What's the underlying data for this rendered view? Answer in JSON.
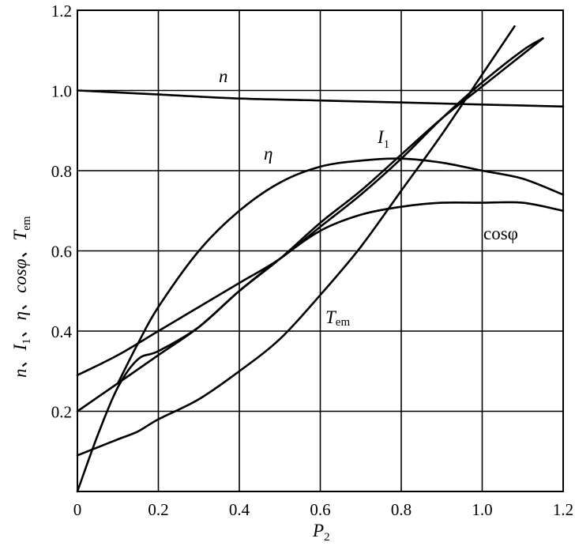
{
  "chart_data": {
    "type": "line",
    "xlabel": {
      "main": "P",
      "sub": "2"
    },
    "ylabel": {
      "main": "n、I",
      "sub1": "1",
      "mid": "、η、cosφ、T",
      "sub2": "em"
    },
    "xlim": [
      0,
      1.2
    ],
    "ylim": [
      0,
      1.2
    ],
    "grid": true,
    "x_ticks": [
      "0",
      "0.2",
      "0.4",
      "0.6",
      "0.8",
      "1.0",
      "1.2"
    ],
    "y_ticks": [
      "0.2",
      "0.4",
      "0.6",
      "0.8",
      "1.0",
      "1.2"
    ],
    "series": [
      {
        "name": "n",
        "x": [
          0,
          0.2,
          0.4,
          0.6,
          0.8,
          1.0,
          1.2
        ],
        "y": [
          1.0,
          0.99,
          0.98,
          0.975,
          0.97,
          0.965,
          0.96
        ]
      },
      {
        "name": "η",
        "x": [
          0.1,
          0.15,
          0.2,
          0.3,
          0.4,
          0.5,
          0.6,
          0.7,
          0.8,
          0.9,
          1.0,
          1.1,
          1.2
        ],
        "y": [
          0.27,
          0.37,
          0.46,
          0.6,
          0.7,
          0.77,
          0.81,
          0.825,
          0.83,
          0.82,
          0.8,
          0.78,
          0.74
        ]
      },
      {
        "name": "I",
        "label_sub": "1",
        "x": [
          0,
          0.1,
          0.2,
          0.3,
          0.4,
          0.5,
          0.6,
          0.7,
          0.8,
          0.9,
          1.0,
          1.1,
          1.15
        ],
        "y": [
          0.29,
          0.34,
          0.4,
          0.46,
          0.52,
          0.58,
          0.66,
          0.74,
          0.83,
          0.93,
          1.02,
          1.1,
          1.13
        ]
      },
      {
        "name": "cosφ",
        "x": [
          0,
          0.1,
          0.2,
          0.3,
          0.4,
          0.5,
          0.6,
          0.7,
          0.8,
          0.9,
          1.0,
          1.1,
          1.2
        ],
        "y": [
          0.2,
          0.27,
          0.34,
          0.41,
          0.5,
          0.58,
          0.65,
          0.69,
          0.71,
          0.72,
          0.72,
          0.72,
          0.7
        ]
      },
      {
        "name": "T",
        "label_sub": "em",
        "x": [
          0,
          0.05,
          0.1,
          0.15,
          0.2,
          0.3,
          0.4,
          0.5,
          0.6,
          0.7,
          0.8,
          0.9,
          1.0,
          1.08
        ],
        "y": [
          0.09,
          0.11,
          0.13,
          0.15,
          0.18,
          0.23,
          0.3,
          0.38,
          0.49,
          0.61,
          0.75,
          0.89,
          1.04,
          1.16
        ]
      },
      {
        "name": "",
        "x": [
          0,
          0.05,
          0.1,
          0.15,
          0.2,
          0.3,
          0.4,
          0.5,
          0.6,
          0.7,
          0.8,
          0.9,
          1.0,
          1.1,
          1.15
        ],
        "y": [
          0.0,
          0.14,
          0.26,
          0.33,
          0.35,
          0.41,
          0.5,
          0.58,
          0.67,
          0.75,
          0.84,
          0.93,
          1.01,
          1.09,
          1.13
        ]
      }
    ]
  }
}
